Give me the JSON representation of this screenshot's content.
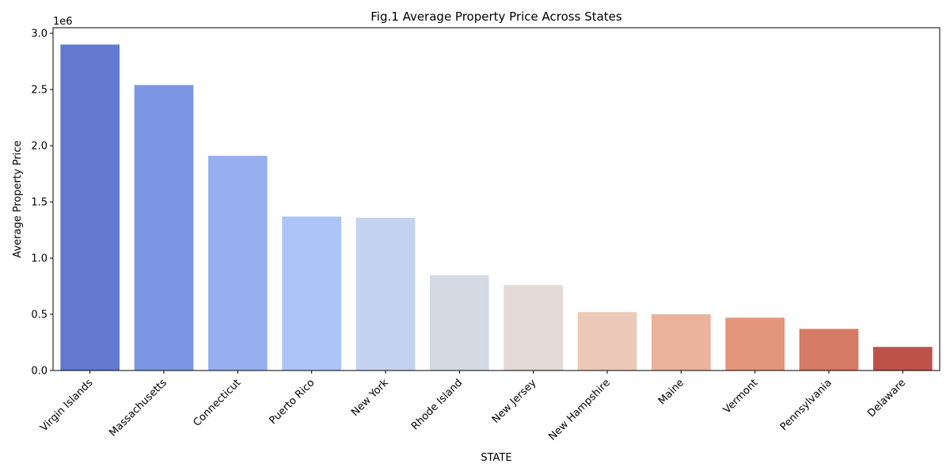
{
  "chart_data": {
    "type": "bar",
    "title": "Fig.1 Average Property Price Across States",
    "xlabel": "STATE",
    "ylabel": "Average Property Price",
    "offset_text": "1e6",
    "ylim": [
      0,
      3.05
    ],
    "yticks": [
      0.0,
      0.5,
      1.0,
      1.5,
      2.0,
      2.5,
      3.0
    ],
    "ytick_labels": [
      "0.0",
      "0.5",
      "1.0",
      "1.5",
      "2.0",
      "2.5",
      "3.0"
    ],
    "categories": [
      "Virgin Islands",
      "Massachusetts",
      "Connecticut",
      "Puerto Rico",
      "New York",
      "Rhode Island",
      "New Jersey",
      "New Hampshire",
      "Maine",
      "Vermont",
      "Pennsylvania",
      "Delaware"
    ],
    "values": [
      2.9,
      2.54,
      1.91,
      1.37,
      1.36,
      0.85,
      0.76,
      0.52,
      0.5,
      0.47,
      0.37,
      0.21
    ],
    "colors": [
      "#6279cf",
      "#7b96e2",
      "#96b0ef",
      "#adc5f6",
      "#c4d3f0",
      "#d5dbe5",
      "#e4d9d4",
      "#ecc9b8",
      "#ebb39c",
      "#e4967c",
      "#d57a65",
      "#be514a"
    ],
    "grid": false,
    "legend": "none"
  }
}
